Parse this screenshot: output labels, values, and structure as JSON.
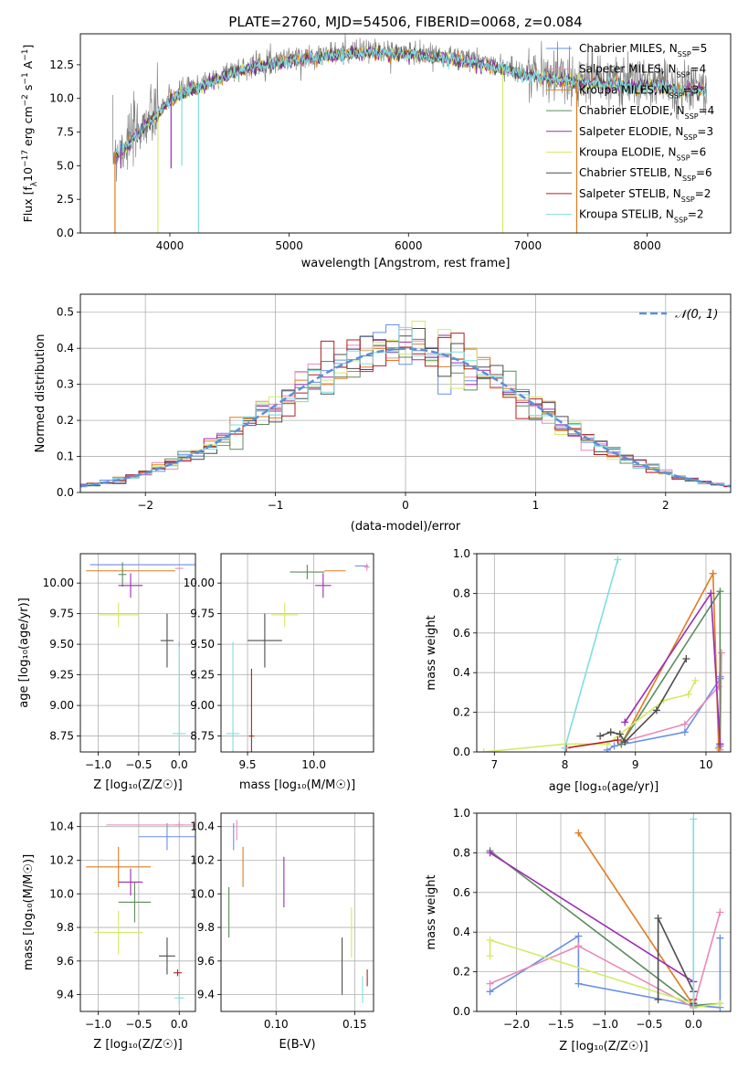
{
  "figure": {
    "title": "PLATE=2760, MJD=54506, FIBERID=0068, z=0.084"
  },
  "colors": {
    "chabrier_miles": "#6a8fe6",
    "salpeter_miles": "#e889b8",
    "kroupa_miles": "#e07b20",
    "chabrier_elodie": "#5c8c5c",
    "salpeter_elodie": "#9b2db3",
    "kroupa_elodie": "#d2ec66",
    "chabrier_stelib": "#4d4d4d",
    "salpeter_stelib": "#b51f1f",
    "kroupa_stelib": "#7fdede",
    "data_grey": "#808080",
    "normal": "#5b8fdc"
  },
  "chart_data": [
    {
      "id": "spectrum",
      "type": "line",
      "xlabel": "wavelength [Angstrom, rest frame]",
      "ylabel_parts": [
        "Flux [f",
        "λ",
        "10",
        "−17",
        " erg cm",
        "−2",
        " s",
        "−1",
        " A",
        "−1",
        "]"
      ],
      "xlim": [
        3250,
        8700
      ],
      "ylim": [
        0,
        14.8
      ],
      "xticks": [
        4000,
        5000,
        6000,
        7000,
        8000
      ],
      "yticks": [
        0.0,
        2.5,
        5.0,
        7.5,
        10.0,
        12.5
      ],
      "legend": [
        {
          "name": "Chabrier MILES, N",
          "n": "5",
          "color_key": "chabrier_miles"
        },
        {
          "name": "Salpeter MILES, N",
          "n": "4",
          "color_key": "salpeter_miles"
        },
        {
          "name": "Kroupa MILES, N",
          "n": "3",
          "color_key": "kroupa_miles"
        },
        {
          "name": "Chabrier ELODIE, N",
          "n": "4",
          "color_key": "chabrier_elodie"
        },
        {
          "name": "Salpeter ELODIE, N",
          "n": "3",
          "color_key": "salpeter_elodie"
        },
        {
          "name": "Kroupa ELODIE, N",
          "n": "6",
          "color_key": "kroupa_elodie"
        },
        {
          "name": "Chabrier STELIB, N",
          "n": "6",
          "color_key": "chabrier_stelib"
        },
        {
          "name": "Salpeter STELIB, N",
          "n": "2",
          "color_key": "salpeter_stelib"
        },
        {
          "name": "Kroupa STELIB, N",
          "n": "2",
          "color_key": "kroupa_stelib"
        }
      ],
      "legend_sub": "SSP",
      "continuum": [
        [
          3520,
          5.9
        ],
        [
          3600,
          6.4
        ],
        [
          3700,
          7.3
        ],
        [
          3800,
          8.3
        ],
        [
          3900,
          9.0
        ],
        [
          4000,
          10.1
        ],
        [
          4100,
          10.6
        ],
        [
          4200,
          10.9
        ],
        [
          4300,
          11.2
        ],
        [
          4500,
          12.0
        ],
        [
          4700,
          12.5
        ],
        [
          4900,
          12.9
        ],
        [
          5100,
          13.1
        ],
        [
          5300,
          13.3
        ],
        [
          5500,
          13.5
        ],
        [
          5700,
          13.6
        ],
        [
          5900,
          13.5
        ],
        [
          6100,
          13.4
        ],
        [
          6300,
          13.2
        ],
        [
          6500,
          13.0
        ],
        [
          6700,
          12.6
        ],
        [
          6900,
          12.1
        ],
        [
          7100,
          11.8
        ],
        [
          7300,
          11.6
        ],
        [
          7500,
          11.4
        ],
        [
          7700,
          11.3
        ],
        [
          7900,
          11.2
        ],
        [
          8100,
          11.1
        ],
        [
          8300,
          10.8
        ],
        [
          8500,
          10.8
        ]
      ],
      "dips": [
        {
          "x": 3540,
          "to": 0.0,
          "color_key": "kroupa_miles"
        },
        {
          "x": 3590,
          "to": 4.8,
          "color_key": "salpeter_elodie"
        },
        {
          "x": 3900,
          "to": 0.0,
          "color_key": "kroupa_elodie"
        },
        {
          "x": 4010,
          "to": 4.8,
          "color_key": "salpeter_elodie"
        },
        {
          "x": 4100,
          "to": 5.0,
          "color_key": "kroupa_stelib"
        },
        {
          "x": 4240,
          "to": 0.0,
          "color_key": "kroupa_stelib"
        },
        {
          "x": 6790,
          "to": 0.0,
          "color_key": "kroupa_elodie"
        },
        {
          "x": 7410,
          "to": 0.0,
          "color_key": "kroupa_miles"
        }
      ]
    },
    {
      "id": "residuals",
      "type": "bar",
      "xlabel": "(data-model)/error",
      "ylabel": "Normed distribution",
      "xlim": [
        -2.5,
        2.5
      ],
      "ylim": [
        0,
        0.55
      ],
      "xticks": [
        -2,
        -1,
        0,
        1,
        2
      ],
      "yticks": [
        0.0,
        0.1,
        0.2,
        0.3,
        0.4,
        0.5
      ],
      "grid": true,
      "legend": {
        "label": "𝒩(0, 1)",
        "position": "top-right"
      },
      "bin_width": 0.1
    },
    {
      "id": "age_vs_Z",
      "type": "scatter",
      "xlabel": "Z [log₁₀(Z/Z☉)]",
      "ylabel": "age  [log₁₀(age/yr)]",
      "xlim": [
        -1.22,
        0.2
      ],
      "ylim": [
        8.62,
        10.24
      ],
      "xticks": [
        -1.0,
        -0.5,
        0.0
      ],
      "yticks": [
        8.75,
        9.0,
        9.25,
        9.5,
        9.75,
        10.0
      ],
      "grid": true,
      "points": [
        {
          "x": -0.4,
          "y": 10.15,
          "xerr": 0.7,
          "yerr": 0.0,
          "color_key": "chabrier_miles"
        },
        {
          "x": 0.0,
          "y": 10.12,
          "xerr": 0.05,
          "yerr": 0.0,
          "color_key": "salpeter_miles"
        },
        {
          "x": -0.6,
          "y": 10.1,
          "xerr": 0.55,
          "yerr": 0.0,
          "color_key": "kroupa_miles"
        },
        {
          "x": -0.7,
          "y": 10.07,
          "xerr": 0.05,
          "yerr": 0.1,
          "color_key": "chabrier_elodie"
        },
        {
          "x": -0.6,
          "y": 9.98,
          "xerr": 0.15,
          "yerr": 0.1,
          "color_key": "salpeter_elodie"
        },
        {
          "x": -0.75,
          "y": 9.74,
          "xerr": 0.25,
          "yerr": 0.1,
          "color_key": "kroupa_elodie"
        },
        {
          "x": -0.15,
          "y": 9.53,
          "xerr": 0.08,
          "yerr": 0.22,
          "color_key": "chabrier_stelib"
        },
        {
          "x": 0.0,
          "y": 9.5,
          "xerr": 0.0,
          "yerr": 0.02,
          "color_key": "salpeter_stelib"
        },
        {
          "x": 0.0,
          "y": 8.77,
          "xerr": 0.08,
          "yerr": 0.75,
          "color_key": "kroupa_stelib"
        }
      ]
    },
    {
      "id": "age_vs_mass",
      "type": "scatter",
      "xlabel": "mass [log₁₀(M/M☉)]",
      "xlim": [
        9.3,
        10.45
      ],
      "ylim": [
        8.62,
        10.24
      ],
      "xticks": [
        9.5,
        10.0
      ],
      "yticks": [
        8.75,
        9.0,
        9.25,
        9.5,
        9.75,
        10.0
      ],
      "grid": true,
      "points": [
        {
          "x": 10.36,
          "y": 10.14,
          "xerr": 0.05,
          "yerr": 0.0,
          "color_key": "chabrier_miles"
        },
        {
          "x": 10.4,
          "y": 10.13,
          "xerr": 0.02,
          "yerr": 0.03,
          "color_key": "salpeter_miles"
        },
        {
          "x": 10.16,
          "y": 10.1,
          "xerr": 0.08,
          "yerr": 0.0,
          "color_key": "kroupa_miles"
        },
        {
          "x": 9.95,
          "y": 10.09,
          "xerr": 0.13,
          "yerr": 0.06,
          "color_key": "chabrier_elodie"
        },
        {
          "x": 10.07,
          "y": 9.98,
          "xerr": 0.06,
          "yerr": 0.1,
          "color_key": "salpeter_elodie"
        },
        {
          "x": 9.78,
          "y": 9.74,
          "xerr": 0.1,
          "yerr": 0.1,
          "color_key": "kroupa_elodie"
        },
        {
          "x": 9.63,
          "y": 9.53,
          "xerr": 0.13,
          "yerr": 0.22,
          "color_key": "chabrier_stelib"
        },
        {
          "x": 9.53,
          "y": 8.75,
          "xerr": 0.02,
          "yerr": 0.55,
          "color_key": "salpeter_stelib"
        },
        {
          "x": 9.39,
          "y": 8.77,
          "xerr": 0.05,
          "yerr": 0.75,
          "color_key": "kroupa_stelib"
        }
      ]
    },
    {
      "id": "mass_weight_vs_age",
      "type": "line",
      "xlabel": "age  [log₁₀(age/yr)]",
      "ylabel": "mass weight",
      "xlim": [
        6.75,
        10.35
      ],
      "ylim": [
        0,
        1
      ],
      "xticks": [
        7,
        8,
        9,
        10
      ],
      "yticks": [
        0.0,
        0.2,
        0.4,
        0.6,
        0.8,
        1.0
      ],
      "grid": true,
      "series": [
        {
          "color_key": "chabrier_miles",
          "x": [
            8.6,
            8.7,
            9.7,
            10.2,
            10.2
          ],
          "y": [
            0.01,
            0.03,
            0.1,
            0.37,
            0.38
          ]
        },
        {
          "color_key": "salpeter_miles",
          "x": [
            8.8,
            9.7,
            10.18,
            10.22,
            10.2
          ],
          "y": [
            0.05,
            0.14,
            0.33,
            0.5,
            0.01
          ]
        },
        {
          "color_key": "kroupa_miles",
          "x": [
            8.8,
            10.1,
            10.18
          ],
          "y": [
            0.04,
            0.9,
            0.02
          ]
        },
        {
          "color_key": "chabrier_elodie",
          "x": [
            8.8,
            10.2,
            10.2
          ],
          "y": [
            0.04,
            0.81,
            0.03
          ]
        },
        {
          "color_key": "salpeter_elodie",
          "x": [
            8.85,
            10.07,
            10.2
          ],
          "y": [
            0.15,
            0.8,
            0.04
          ]
        },
        {
          "color_key": "kroupa_elodie",
          "x": [
            6.85,
            8.0,
            8.6,
            9.4,
            9.75,
            9.85
          ],
          "y": [
            0.0,
            0.04,
            0.04,
            0.26,
            0.29,
            0.36
          ]
        },
        {
          "color_key": "chabrier_stelib",
          "x": [
            8.5,
            8.65,
            8.78,
            8.85,
            9.3,
            9.72
          ],
          "y": [
            0.08,
            0.1,
            0.09,
            0.05,
            0.21,
            0.47
          ]
        },
        {
          "color_key": "salpeter_stelib",
          "x": [
            8.02,
            8.75
          ],
          "y": [
            0.02,
            0.06
          ]
        },
        {
          "color_key": "kroupa_stelib",
          "x": [
            8.0,
            8.75
          ],
          "y": [
            0.02,
            0.97
          ]
        }
      ]
    },
    {
      "id": "mass_vs_Z",
      "type": "scatter",
      "xlabel": "Z [log₁₀(Z/Z☉)]",
      "ylabel": "mass [log₁₀(M/M☉)]",
      "xlim": [
        -1.22,
        0.2
      ],
      "ylim": [
        9.3,
        10.48
      ],
      "xticks": [
        -1.0,
        -0.5,
        0.0
      ],
      "yticks": [
        9.4,
        9.6,
        9.8,
        10.0,
        10.2,
        10.4
      ],
      "grid": true,
      "points": [
        {
          "x": -0.15,
          "y": 10.34,
          "xerr": 0.35,
          "yerr": 0.08,
          "color_key": "chabrier_miles"
        },
        {
          "x": -0.3,
          "y": 10.41,
          "xerr": 0.6,
          "yerr": 0.0,
          "color_key": "salpeter_miles"
        },
        {
          "x": 0.0,
          "y": 10.41,
          "xerr": 0.05,
          "yerr": 0.02,
          "color_key": "salpeter_miles"
        },
        {
          "x": -0.75,
          "y": 10.16,
          "xerr": 0.4,
          "yerr": 0.12,
          "color_key": "kroupa_miles"
        },
        {
          "x": -0.55,
          "y": 9.95,
          "xerr": 0.2,
          "yerr": 0.12,
          "color_key": "chabrier_elodie"
        },
        {
          "x": -0.6,
          "y": 10.07,
          "xerr": 0.15,
          "yerr": 0.08,
          "color_key": "salpeter_elodie"
        },
        {
          "x": -0.75,
          "y": 9.77,
          "xerr": 0.3,
          "yerr": 0.13,
          "color_key": "kroupa_elodie"
        },
        {
          "x": -0.15,
          "y": 9.63,
          "xerr": 0.1,
          "yerr": 0.11,
          "color_key": "chabrier_stelib"
        },
        {
          "x": -0.02,
          "y": 9.53,
          "xerr": 0.05,
          "yerr": 0.02,
          "color_key": "salpeter_stelib"
        },
        {
          "x": 0.0,
          "y": 9.38,
          "xerr": 0.06,
          "yerr": 0.04,
          "color_key": "kroupa_stelib"
        }
      ]
    },
    {
      "id": "mass_vs_ebv",
      "type": "scatter",
      "xlabel": "E(B-V)",
      "xlim": [
        0.065,
        0.162
      ],
      "ylim": [
        9.3,
        10.48
      ],
      "xticks": [
        0.1,
        0.15
      ],
      "yticks": [
        9.4,
        9.6,
        9.8,
        10.0,
        10.2,
        10.4
      ],
      "grid": true,
      "points": [
        {
          "x": 0.073,
          "y": 10.34,
          "xerr": 0.0,
          "yerr": 0.08,
          "color_key": "chabrier_miles"
        },
        {
          "x": 0.075,
          "y": 10.38,
          "xerr": 0.0,
          "yerr": 0.06,
          "color_key": "salpeter_miles"
        },
        {
          "x": 0.079,
          "y": 10.16,
          "xerr": 0.0,
          "yerr": 0.12,
          "color_key": "kroupa_miles"
        },
        {
          "x": 0.07,
          "y": 9.89,
          "xerr": 0.0,
          "yerr": 0.15,
          "color_key": "chabrier_elodie"
        },
        {
          "x": 0.105,
          "y": 10.07,
          "xerr": 0.0,
          "yerr": 0.15,
          "color_key": "salpeter_elodie"
        },
        {
          "x": 0.148,
          "y": 9.77,
          "xerr": 0.0,
          "yerr": 0.15,
          "color_key": "kroupa_elodie"
        },
        {
          "x": 0.142,
          "y": 9.57,
          "xerr": 0.0,
          "yerr": 0.17,
          "color_key": "chabrier_stelib"
        },
        {
          "x": 0.158,
          "y": 9.5,
          "xerr": 0.0,
          "yerr": 0.05,
          "color_key": "salpeter_stelib"
        },
        {
          "x": 0.155,
          "y": 9.43,
          "xerr": 0.0,
          "yerr": 0.08,
          "color_key": "kroupa_stelib"
        }
      ]
    },
    {
      "id": "mass_weight_vs_Z",
      "type": "line",
      "xlabel": "Z [log₁₀(Z/Z☉)]",
      "ylabel": "mass weight",
      "xlim": [
        -2.45,
        0.42
      ],
      "ylim": [
        0,
        1
      ],
      "xticks": [
        -2.0,
        -1.5,
        -1.0,
        -0.5,
        0.0
      ],
      "yticks": [
        0.0,
        0.2,
        0.4,
        0.6,
        0.8,
        1.0
      ],
      "grid": true,
      "series": [
        {
          "color_key": "chabrier_miles",
          "x": [
            -2.3,
            -1.3,
            -1.3,
            0.0,
            0.3,
            0.3
          ],
          "y": [
            0.1,
            0.38,
            0.14,
            0.03,
            0.02,
            0.37
          ]
        },
        {
          "color_key": "salpeter_miles",
          "x": [
            -2.3,
            -1.3,
            0.0,
            0.3
          ],
          "y": [
            0.14,
            0.33,
            0.02,
            0.5
          ]
        },
        {
          "color_key": "kroupa_miles",
          "x": [
            -1.3,
            0.0
          ],
          "y": [
            0.9,
            0.03
          ]
        },
        {
          "color_key": "chabrier_elodie",
          "x": [
            -2.3,
            0.0,
            0.3
          ],
          "y": [
            0.81,
            0.03,
            0.04
          ]
        },
        {
          "color_key": "salpeter_elodie",
          "x": [
            -2.3,
            0.0,
            0.0
          ],
          "y": [
            0.8,
            0.15,
            0.04
          ]
        },
        {
          "color_key": "kroupa_elodie",
          "x": [
            -2.3,
            -2.3,
            0.0,
            0.0,
            0.3
          ],
          "y": [
            0.28,
            0.36,
            0.04,
            0.02,
            0.04
          ]
        },
        {
          "color_key": "chabrier_stelib",
          "x": [
            -0.4,
            -0.4,
            0.0,
            0.0
          ],
          "y": [
            0.06,
            0.47,
            0.1,
            0.04
          ]
        },
        {
          "color_key": "salpeter_stelib",
          "x": [
            0.0,
            0.0
          ],
          "y": [
            0.02,
            0.06
          ]
        },
        {
          "color_key": "kroupa_stelib",
          "x": [
            0.0,
            0.0
          ],
          "y": [
            0.02,
            0.97
          ]
        }
      ]
    }
  ]
}
